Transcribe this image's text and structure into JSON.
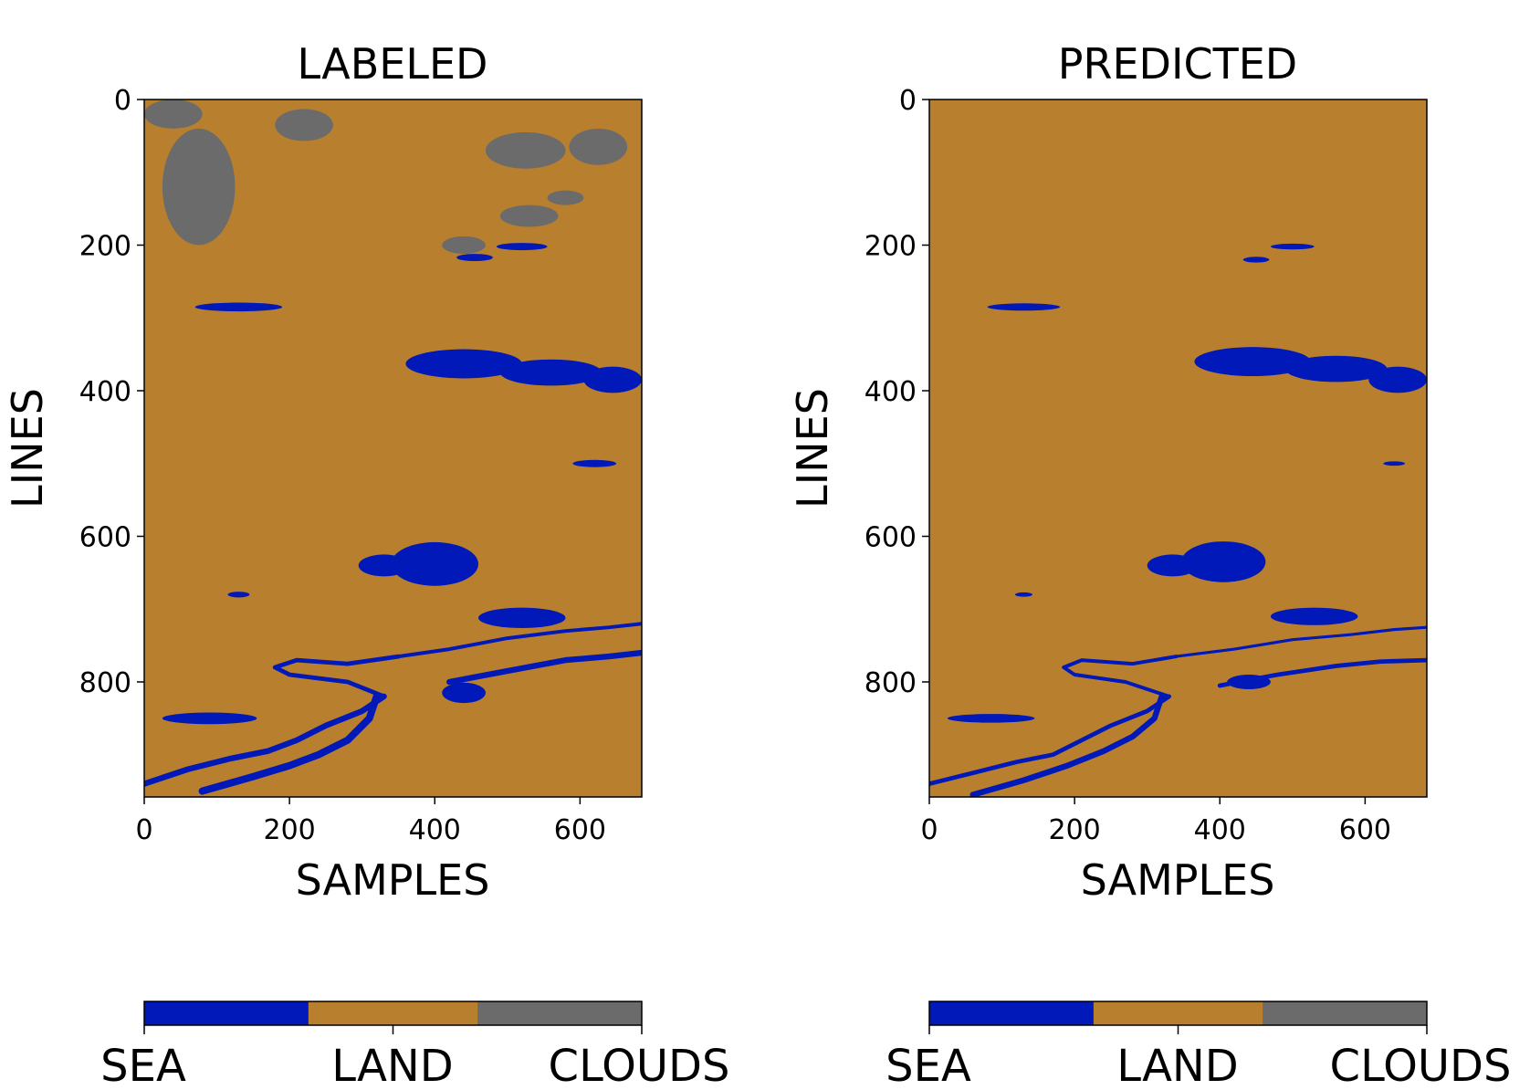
{
  "colors": {
    "sea": "#0019b8",
    "land": "#b8802e",
    "clouds": "#6b6b6b",
    "axis": "#000000"
  },
  "chart_data": [
    {
      "type": "heatmap",
      "title": "LABELED",
      "xlabel": "SAMPLES",
      "ylabel": "LINES",
      "xlim": [
        0,
        685
      ],
      "ylim": [
        958,
        0
      ],
      "xticks": [
        0,
        200,
        400,
        600
      ],
      "yticks": [
        0,
        200,
        400,
        600,
        800
      ],
      "classes": [
        "SEA",
        "LAND",
        "CLOUDS"
      ],
      "background_class": "LAND",
      "sea_regions": [
        {
          "cx": 440,
          "cy": 363,
          "rx": 80,
          "ry": 20
        },
        {
          "cx": 560,
          "cy": 375,
          "rx": 70,
          "ry": 18
        },
        {
          "cx": 645,
          "cy": 385,
          "rx": 40,
          "ry": 18
        },
        {
          "cx": 400,
          "cy": 638,
          "rx": 60,
          "ry": 30
        },
        {
          "cx": 330,
          "cy": 640,
          "rx": 35,
          "ry": 15
        },
        {
          "cx": 520,
          "cy": 712,
          "rx": 60,
          "ry": 14
        },
        {
          "cx": 440,
          "cy": 815,
          "rx": 30,
          "ry": 14
        },
        {
          "cx": 130,
          "cy": 285,
          "rx": 60,
          "ry": 6
        },
        {
          "cx": 520,
          "cy": 202,
          "rx": 35,
          "ry": 5
        },
        {
          "cx": 455,
          "cy": 217,
          "rx": 25,
          "ry": 5
        },
        {
          "cx": 90,
          "cy": 850,
          "rx": 65,
          "ry": 8
        },
        {
          "cx": 620,
          "cy": 500,
          "rx": 30,
          "ry": 5
        },
        {
          "cx": 130,
          "cy": 680,
          "rx": 15,
          "ry": 4
        }
      ],
      "cloud_regions": [
        {
          "cx": 40,
          "cy": 20,
          "rx": 40,
          "ry": 20
        },
        {
          "cx": 75,
          "cy": 120,
          "rx": 50,
          "ry": 80
        },
        {
          "cx": 220,
          "cy": 35,
          "rx": 40,
          "ry": 22
        },
        {
          "cx": 525,
          "cy": 70,
          "rx": 55,
          "ry": 25
        },
        {
          "cx": 625,
          "cy": 65,
          "rx": 40,
          "ry": 25
        },
        {
          "cx": 530,
          "cy": 160,
          "rx": 40,
          "ry": 15
        },
        {
          "cx": 440,
          "cy": 200,
          "rx": 30,
          "ry": 12
        },
        {
          "cx": 580,
          "cy": 135,
          "rx": 25,
          "ry": 10
        }
      ],
      "channels": [
        {
          "x": [
            0,
            60,
            120,
            170,
            210,
            250,
            300,
            330
          ],
          "y": [
            940,
            920,
            905,
            895,
            880,
            860,
            840,
            820
          ],
          "width": 8
        },
        {
          "x": [
            80,
            150,
            200,
            240,
            280,
            310,
            320
          ],
          "y": [
            950,
            930,
            915,
            900,
            880,
            850,
            820
          ],
          "width": 10
        },
        {
          "x": [
            330,
            280,
            200,
            180,
            210,
            280,
            350
          ],
          "y": [
            820,
            800,
            790,
            780,
            770,
            775,
            765
          ],
          "width": 6
        },
        {
          "x": [
            350,
            420,
            500,
            580,
            640,
            685
          ],
          "y": [
            765,
            755,
            740,
            730,
            725,
            720
          ],
          "width": 5
        },
        {
          "x": [
            420,
            500,
            580,
            640,
            685
          ],
          "y": [
            800,
            785,
            770,
            765,
            760
          ],
          "width": 8
        }
      ],
      "colorbar": {
        "tick_labels": [
          "SEA",
          "LAND",
          "CLOUDS"
        ],
        "segments": [
          0.33,
          0.34,
          0.33
        ]
      }
    },
    {
      "type": "heatmap",
      "title": "PREDICTED",
      "xlabel": "SAMPLES",
      "ylabel": "LINES",
      "xlim": [
        0,
        685
      ],
      "ylim": [
        958,
        0
      ],
      "xticks": [
        0,
        200,
        400,
        600
      ],
      "yticks": [
        0,
        200,
        400,
        600,
        800
      ],
      "classes": [
        "SEA",
        "LAND",
        "CLOUDS"
      ],
      "background_class": "LAND",
      "sea_regions": [
        {
          "cx": 445,
          "cy": 360,
          "rx": 80,
          "ry": 20
        },
        {
          "cx": 560,
          "cy": 370,
          "rx": 70,
          "ry": 18
        },
        {
          "cx": 645,
          "cy": 385,
          "rx": 40,
          "ry": 18
        },
        {
          "cx": 405,
          "cy": 635,
          "rx": 58,
          "ry": 28
        },
        {
          "cx": 335,
          "cy": 640,
          "rx": 35,
          "ry": 15
        },
        {
          "cx": 530,
          "cy": 710,
          "rx": 60,
          "ry": 12
        },
        {
          "cx": 440,
          "cy": 800,
          "rx": 30,
          "ry": 10
        },
        {
          "cx": 130,
          "cy": 285,
          "rx": 50,
          "ry": 5
        },
        {
          "cx": 500,
          "cy": 202,
          "rx": 30,
          "ry": 4
        },
        {
          "cx": 85,
          "cy": 850,
          "rx": 60,
          "ry": 6
        },
        {
          "cx": 450,
          "cy": 220,
          "rx": 18,
          "ry": 4
        },
        {
          "cx": 640,
          "cy": 500,
          "rx": 15,
          "ry": 3
        },
        {
          "cx": 130,
          "cy": 680,
          "rx": 12,
          "ry": 3
        }
      ],
      "cloud_regions": [],
      "channels": [
        {
          "x": [
            0,
            60,
            120,
            170,
            210,
            250,
            300,
            330
          ],
          "y": [
            940,
            925,
            910,
            900,
            880,
            860,
            840,
            820
          ],
          "width": 6
        },
        {
          "x": [
            60,
            130,
            190,
            240,
            280,
            310,
            320
          ],
          "y": [
            955,
            935,
            915,
            895,
            875,
            850,
            820
          ],
          "width": 8
        },
        {
          "x": [
            330,
            270,
            200,
            185,
            210,
            280,
            340
          ],
          "y": [
            820,
            800,
            790,
            780,
            770,
            775,
            765
          ],
          "width": 5
        },
        {
          "x": [
            340,
            420,
            500,
            580,
            640,
            685
          ],
          "y": [
            765,
            755,
            742,
            735,
            728,
            725
          ],
          "width": 4
        },
        {
          "x": [
            400,
            480,
            560,
            620,
            685
          ],
          "y": [
            805,
            790,
            778,
            772,
            770
          ],
          "width": 6
        }
      ],
      "colorbar": {
        "tick_labels": [
          "SEA",
          "LAND",
          "CLOUDS"
        ],
        "segments": [
          0.33,
          0.34,
          0.33
        ]
      }
    }
  ]
}
